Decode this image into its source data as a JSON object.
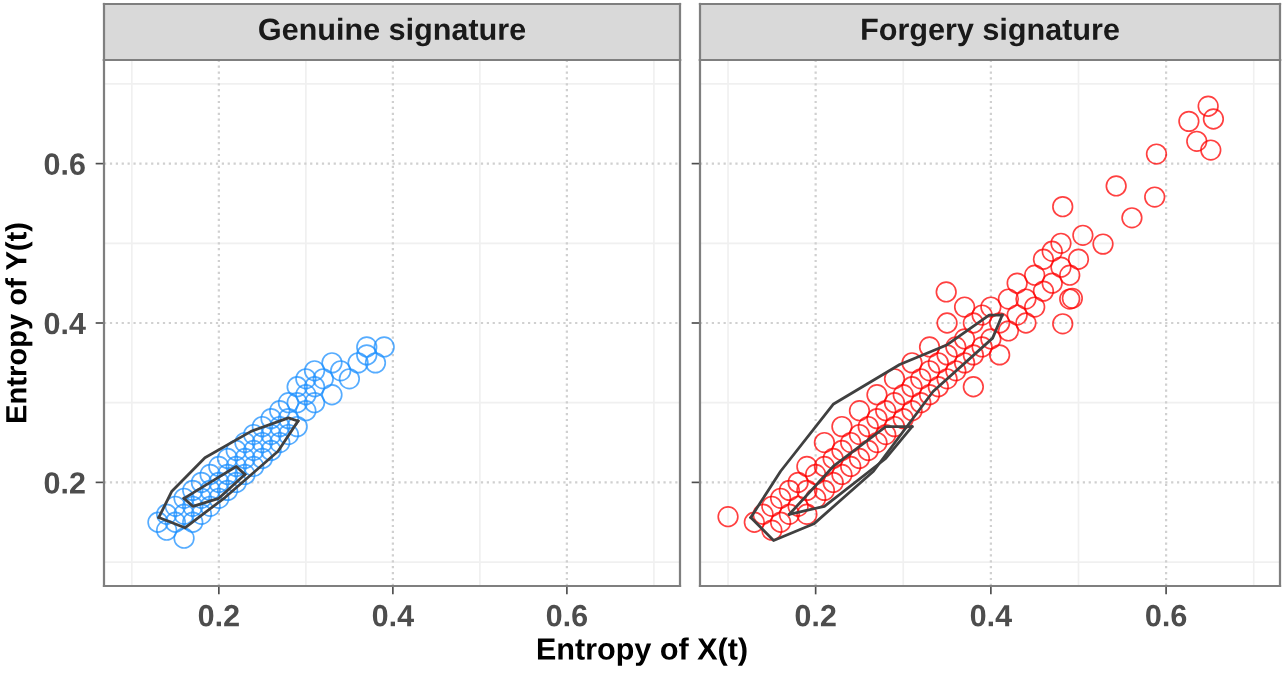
{
  "chart_data": [
    {
      "type": "scatter",
      "title": "Genuine signature",
      "xlabel": "Entropy of X(t)",
      "ylabel": "Entropy of Y(t)",
      "marker": "circle",
      "grid": true,
      "legend": false,
      "xlim": [
        0.068,
        0.73
      ],
      "ylim": [
        0.07,
        0.73
      ],
      "xticks": [
        0.2,
        0.4,
        0.6
      ],
      "yticks": [
        0.2,
        0.4,
        0.6
      ],
      "series": [
        {
          "color": "#1e90ff",
          "x": [
            0.13,
            0.14,
            0.14,
            0.15,
            0.15,
            0.16,
            0.16,
            0.16,
            0.17,
            0.17,
            0.17,
            0.18,
            0.18,
            0.18,
            0.19,
            0.19,
            0.19,
            0.2,
            0.2,
            0.2,
            0.21,
            0.21,
            0.21,
            0.22,
            0.22,
            0.22,
            0.23,
            0.23,
            0.23,
            0.24,
            0.24,
            0.24,
            0.25,
            0.25,
            0.25,
            0.26,
            0.26,
            0.26,
            0.27,
            0.27,
            0.27,
            0.28,
            0.28,
            0.28,
            0.29,
            0.29,
            0.29,
            0.3,
            0.3,
            0.3,
            0.31,
            0.31,
            0.31,
            0.32,
            0.33,
            0.33,
            0.34,
            0.35,
            0.36,
            0.37,
            0.38,
            0.39,
            0.37
          ],
          "values": [
            0.15,
            0.16,
            0.14,
            0.15,
            0.17,
            0.13,
            0.16,
            0.18,
            0.15,
            0.17,
            0.19,
            0.16,
            0.18,
            0.2,
            0.17,
            0.19,
            0.21,
            0.18,
            0.2,
            0.22,
            0.19,
            0.21,
            0.23,
            0.2,
            0.22,
            0.24,
            0.21,
            0.23,
            0.25,
            0.22,
            0.24,
            0.26,
            0.23,
            0.25,
            0.27,
            0.24,
            0.26,
            0.28,
            0.25,
            0.27,
            0.29,
            0.26,
            0.28,
            0.3,
            0.27,
            0.3,
            0.32,
            0.29,
            0.31,
            0.33,
            0.3,
            0.32,
            0.34,
            0.33,
            0.31,
            0.35,
            0.34,
            0.33,
            0.35,
            0.36,
            0.35,
            0.37,
            0.37
          ]
        },
        {
          "type": "line",
          "marker": "none",
          "color": "#404040",
          "x": [
            0.131,
            0.161,
            0.207,
            0.268,
            0.291
          ],
          "values": [
            0.156,
            0.143,
            0.181,
            0.239,
            0.277
          ]
        },
        {
          "type": "line",
          "marker": "none",
          "color": "#404040",
          "x": [
            0.131,
            0.146,
            0.184,
            0.237,
            0.28,
            0.291
          ],
          "values": [
            0.156,
            0.189,
            0.231,
            0.264,
            0.281,
            0.277
          ]
        },
        {
          "type": "line",
          "marker": "none",
          "color": "#404040",
          "x": [
            0.16,
            0.17,
            0.2,
            0.23
          ],
          "values": [
            0.18,
            0.17,
            0.18,
            0.21
          ]
        },
        {
          "type": "line",
          "marker": "none",
          "color": "#404040",
          "x": [
            0.16,
            0.19,
            0.22,
            0.23
          ],
          "values": [
            0.18,
            0.2,
            0.22,
            0.21
          ]
        }
      ]
    },
    {
      "type": "scatter",
      "title": "Forgery signature",
      "marker": "circle",
      "grid": true,
      "legend": false,
      "tick_labels": "x",
      "xlim": [
        0.068,
        0.73
      ],
      "ylim": [
        0.07,
        0.73
      ],
      "xticks": [
        0.2,
        0.4,
        0.6
      ],
      "yticks": [
        0.2,
        0.4,
        0.6
      ],
      "series": [
        {
          "color": "#ff0000",
          "x": [
            0.1,
            0.13,
            0.14,
            0.15,
            0.15,
            0.16,
            0.16,
            0.17,
            0.17,
            0.18,
            0.18,
            0.19,
            0.19,
            0.19,
            0.2,
            0.2,
            0.21,
            0.21,
            0.21,
            0.22,
            0.22,
            0.23,
            0.23,
            0.23,
            0.24,
            0.24,
            0.25,
            0.25,
            0.25,
            0.26,
            0.26,
            0.27,
            0.27,
            0.27,
            0.28,
            0.28,
            0.29,
            0.29,
            0.29,
            0.3,
            0.3,
            0.31,
            0.31,
            0.31,
            0.32,
            0.32,
            0.33,
            0.33,
            0.33,
            0.34,
            0.34,
            0.35,
            0.35,
            0.35,
            0.36,
            0.36,
            0.37,
            0.37,
            0.37,
            0.38,
            0.38,
            0.38,
            0.39,
            0.39,
            0.4,
            0.4,
            0.41,
            0.41,
            0.42,
            0.42,
            0.43,
            0.43,
            0.44,
            0.44,
            0.45,
            0.45,
            0.46,
            0.46,
            0.47,
            0.47,
            0.48,
            0.48,
            0.49,
            0.49,
            0.5,
            0.349,
            0.482,
            0.493,
            0.505,
            0.528,
            0.482,
            0.543,
            0.561,
            0.587,
            0.589,
            0.626,
            0.635,
            0.648,
            0.651,
            0.654
          ],
          "values": [
            0.157,
            0.15,
            0.16,
            0.14,
            0.17,
            0.15,
            0.18,
            0.16,
            0.19,
            0.17,
            0.2,
            0.16,
            0.19,
            0.22,
            0.18,
            0.21,
            0.19,
            0.22,
            0.25,
            0.2,
            0.23,
            0.21,
            0.24,
            0.27,
            0.22,
            0.25,
            0.23,
            0.26,
            0.29,
            0.24,
            0.27,
            0.25,
            0.28,
            0.31,
            0.26,
            0.29,
            0.27,
            0.3,
            0.33,
            0.28,
            0.31,
            0.29,
            0.32,
            0.35,
            0.3,
            0.33,
            0.31,
            0.34,
            0.37,
            0.32,
            0.35,
            0.33,
            0.36,
            0.4,
            0.34,
            0.37,
            0.35,
            0.38,
            0.42,
            0.32,
            0.36,
            0.4,
            0.37,
            0.41,
            0.38,
            0.42,
            0.36,
            0.4,
            0.39,
            0.43,
            0.41,
            0.45,
            0.4,
            0.43,
            0.42,
            0.46,
            0.44,
            0.48,
            0.45,
            0.49,
            0.47,
            0.5,
            0.46,
            0.43,
            0.48,
            0.439,
            0.399,
            0.431,
            0.51,
            0.499,
            0.546,
            0.572,
            0.532,
            0.558,
            0.612,
            0.653,
            0.628,
            0.672,
            0.617,
            0.656
          ]
        },
        {
          "type": "line",
          "marker": "none",
          "color": "#404040",
          "x": [
            0.126,
            0.152,
            0.198,
            0.266,
            0.334,
            0.402,
            0.413
          ],
          "values": [
            0.156,
            0.127,
            0.148,
            0.214,
            0.314,
            0.381,
            0.41
          ]
        },
        {
          "type": "line",
          "marker": "none",
          "color": "#404040",
          "x": [
            0.126,
            0.16,
            0.22,
            0.296,
            0.349,
            0.398,
            0.413
          ],
          "values": [
            0.156,
            0.214,
            0.298,
            0.348,
            0.372,
            0.41,
            0.41
          ]
        },
        {
          "type": "line",
          "marker": "none",
          "color": "#404040",
          "x": [
            0.17,
            0.21,
            0.28,
            0.31
          ],
          "values": [
            0.16,
            0.17,
            0.23,
            0.27
          ]
        },
        {
          "type": "line",
          "marker": "none",
          "color": "#404040",
          "x": [
            0.17,
            0.22,
            0.28,
            0.31
          ],
          "values": [
            0.16,
            0.22,
            0.27,
            0.27
          ]
        }
      ]
    }
  ]
}
